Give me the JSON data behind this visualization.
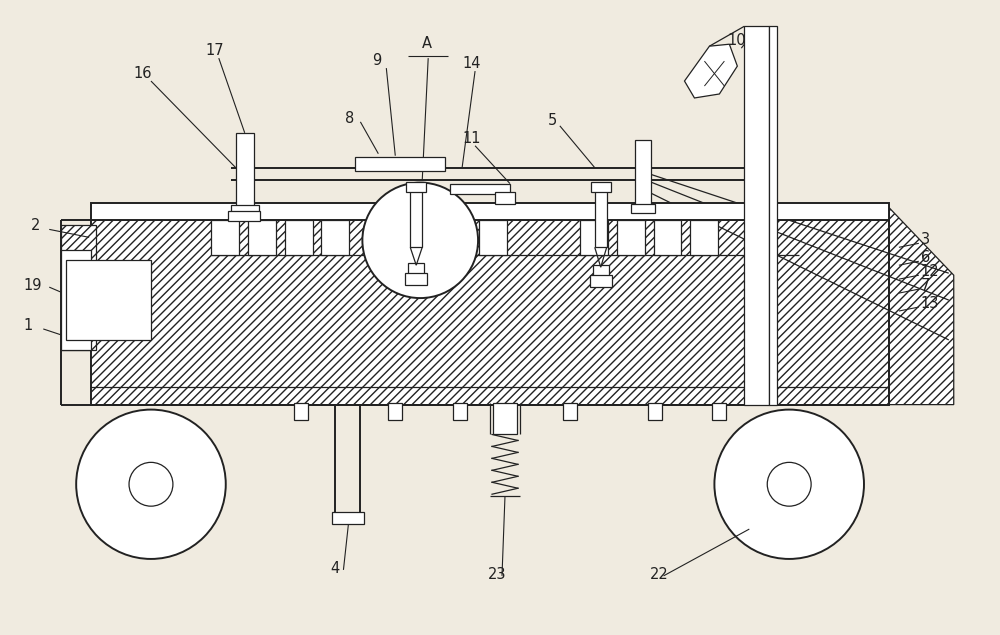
{
  "bg_color": "#f0ebe0",
  "lc": "#222222",
  "figsize": [
    10.0,
    6.35
  ],
  "dpi": 100,
  "xlim": [
    0,
    10
  ],
  "ylim": [
    0,
    6.35
  ]
}
